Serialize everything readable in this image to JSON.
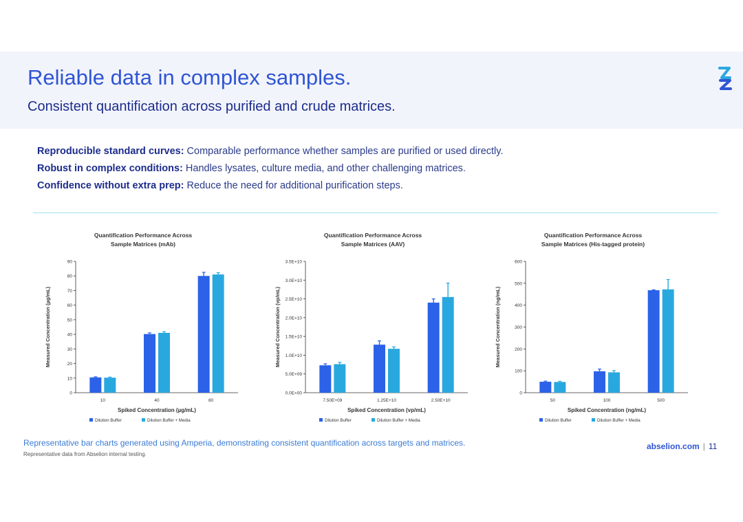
{
  "header": {
    "title": "Reliable data in complex samples.",
    "subtitle": "Consistent quantification across purified and crude matrices."
  },
  "bullets": [
    {
      "bold": "Reproducible standard curves:",
      "text": " Comparable performance whether samples are purified or used directly."
    },
    {
      "bold": "Robust in complex conditions:",
      "text": " Handles lysates, culture media, and other challenging matrices."
    },
    {
      "bold": "Confidence without extra prep:",
      "text": " Reduce the need for additional purification steps."
    }
  ],
  "colors": {
    "series1": "#2b62e8",
    "series2": "#29a8e0",
    "accent": "#2f55d4"
  },
  "chart_data": [
    {
      "type": "bar",
      "title": [
        "Quantification Performance Across",
        "Sample Matrices (mAb)"
      ],
      "xlabel": "Spiked Concentration (µg/mL)",
      "ylabel": "Measured Concentration (µg/mL)",
      "categories": [
        "10",
        "40",
        "80"
      ],
      "ylim": [
        0,
        90
      ],
      "yticks": [
        0,
        10,
        20,
        30,
        40,
        50,
        60,
        70,
        80,
        90
      ],
      "ytick_labels": [
        "0",
        "10",
        "20",
        "30",
        "40",
        "50",
        "60",
        "70",
        "80",
        "90"
      ],
      "series": [
        {
          "name": "Dilution Buffer",
          "values": [
            10.5,
            40.2,
            80.0
          ],
          "errors": [
            0.4,
            0.8,
            2.5
          ]
        },
        {
          "name": "Dilution Buffer + Media",
          "values": [
            10.3,
            41.0,
            81.0
          ],
          "errors": [
            0.4,
            0.8,
            1.2
          ]
        }
      ]
    },
    {
      "type": "bar",
      "title": [
        "Quantification Performance Across",
        "Sample Matrices (AAV)"
      ],
      "xlabel": "Spiked Concentration (vp/mL)",
      "ylabel": "Measured Concentration (vp/mL)",
      "categories": [
        "7.50E+09",
        "1.25E+10",
        "2.50E+10"
      ],
      "ylim": [
        0,
        35000000000
      ],
      "yticks": [
        0,
        5000000000,
        10000000000,
        15000000000,
        20000000000,
        25000000000,
        30000000000,
        35000000000
      ],
      "ytick_labels": [
        "0.0E+00",
        "5.0E+09",
        "1.0E+10",
        "1.5E+10",
        "2.0E+10",
        "2.5E+10",
        "3.0E+10",
        "3.5E+10"
      ],
      "series": [
        {
          "name": "Dilution Buffer",
          "values": [
            7300000000,
            12800000000,
            24000000000
          ],
          "errors": [
            400000000,
            1000000000,
            1000000000
          ]
        },
        {
          "name": "Dilution Buffer + Media",
          "values": [
            7600000000,
            11700000000,
            25500000000
          ],
          "errors": [
            500000000,
            500000000,
            3700000000
          ]
        }
      ]
    },
    {
      "type": "bar",
      "title": [
        "Quantification Performance Across",
        "Sample Matrices (His-tagged protein)"
      ],
      "xlabel": "Spiked Concentration (ng/mL)",
      "ylabel": "Measured Concentration (ng/mL)",
      "categories": [
        "50",
        "100",
        "500"
      ],
      "ylim": [
        0,
        600
      ],
      "yticks": [
        0,
        100,
        200,
        300,
        400,
        500,
        600
      ],
      "ytick_labels": [
        "0",
        "100",
        "200",
        "300",
        "400",
        "500",
        "600"
      ],
      "series": [
        {
          "name": "Dilution Buffer",
          "values": [
            50,
            98,
            468
          ],
          "errors": [
            3,
            10,
            2
          ]
        },
        {
          "name": "Dilution Buffer + Media",
          "values": [
            49,
            93,
            472
          ],
          "errors": [
            3,
            8,
            45
          ]
        }
      ]
    }
  ],
  "caption": "Representative bar charts generated using Amperia, demonstrating consistent quantification across targets and matrices.",
  "note": "Representative data from Abselion internal testing.",
  "footer": {
    "url": "abselion.com",
    "separator": "|",
    "page": "11"
  }
}
